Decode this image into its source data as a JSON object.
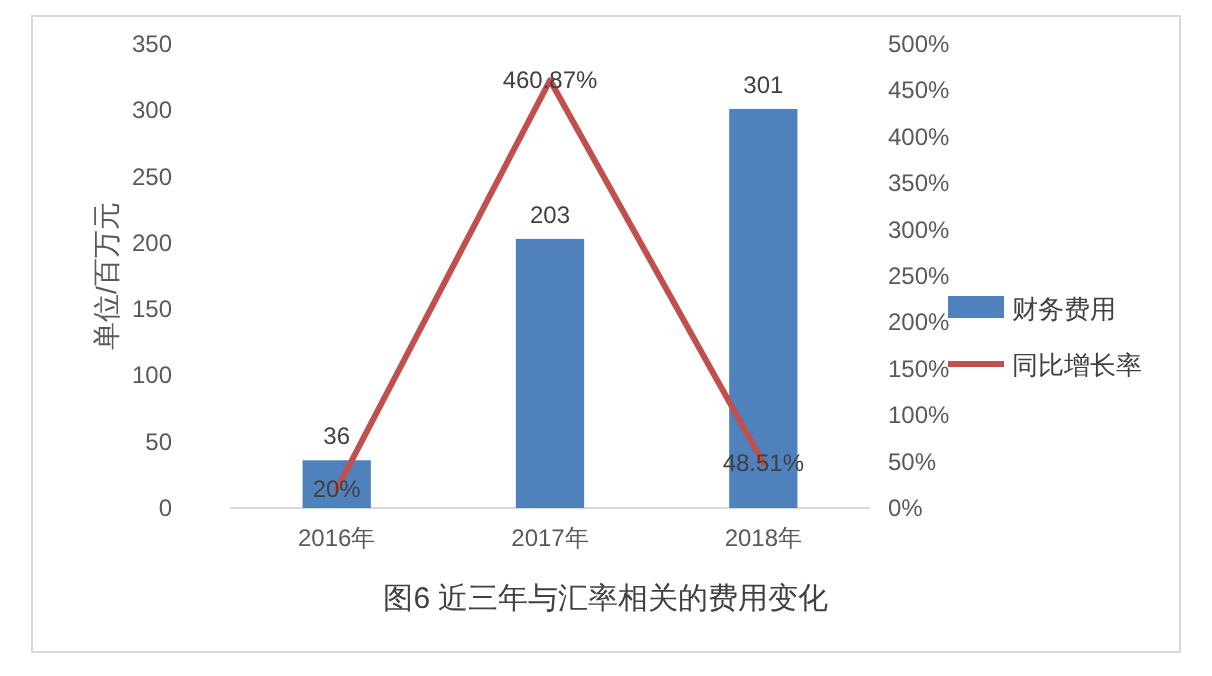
{
  "chart_data": {
    "type": "bar",
    "title": "图6  近三年与汇率相关的费用变化",
    "ylabel": "单位/百万元",
    "categories": [
      "2016年",
      "2017年",
      "2018年"
    ],
    "ylim": [
      0,
      350
    ],
    "yticks": [
      0,
      50,
      100,
      150,
      200,
      250,
      300,
      350
    ],
    "y2lim": [
      0,
      500
    ],
    "y2ticks": [
      {
        "value": 0,
        "label": "0%"
      },
      {
        "value": 50,
        "label": "50%"
      },
      {
        "value": 100,
        "label": "100%"
      },
      {
        "value": 150,
        "label": "150%"
      },
      {
        "value": 200,
        "label": "200%"
      },
      {
        "value": 250,
        "label": "250%"
      },
      {
        "value": 300,
        "label": "300%"
      },
      {
        "value": 350,
        "label": "350%"
      },
      {
        "value": 400,
        "label": "400%"
      },
      {
        "value": 450,
        "label": "450%"
      },
      {
        "value": 500,
        "label": "500%"
      }
    ],
    "legend": "right",
    "series": [
      {
        "name": "财务费用",
        "color": "#4f81bd",
        "values": [
          36,
          203,
          301
        ],
        "value_labels": [
          "36",
          "203",
          "301"
        ]
      },
      {
        "name": "同比增长率",
        "type": "line",
        "axis": "y2",
        "color": "#c0504d",
        "values": [
          20,
          460.87,
          48.51
        ],
        "value_labels": [
          "20%",
          "460.87%",
          "48.51%"
        ]
      }
    ]
  }
}
